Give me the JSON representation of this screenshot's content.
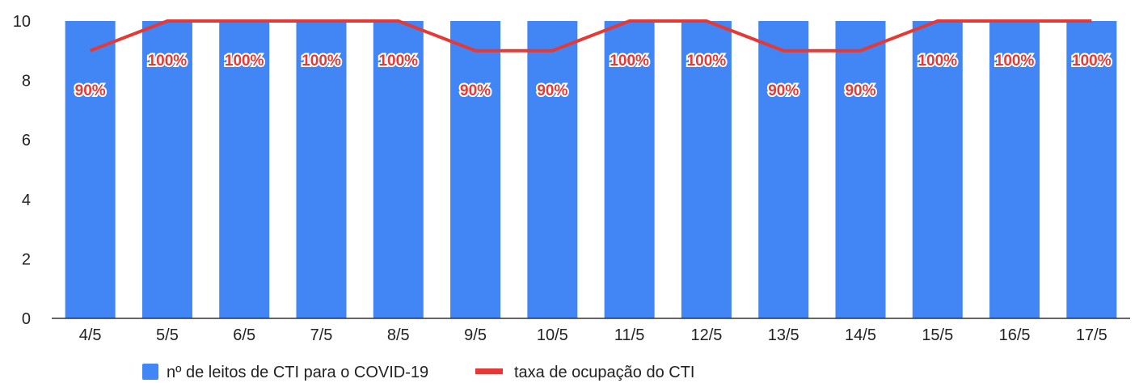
{
  "chart_data": {
    "type": "bar",
    "categories": [
      "4/5",
      "5/5",
      "6/5",
      "7/5",
      "8/5",
      "9/5",
      "10/5",
      "11/5",
      "12/5",
      "13/5",
      "14/5",
      "15/5",
      "16/5",
      "17/5"
    ],
    "series": [
      {
        "name": "nº de leitos de CTI para o COVID-19",
        "type": "bar",
        "color": "#4285f4",
        "values": [
          10,
          10,
          10,
          10,
          10,
          10,
          10,
          10,
          10,
          10,
          10,
          10,
          10,
          10
        ]
      },
      {
        "name": "taxa de ocupação do CTI",
        "type": "line",
        "color": "#e53935",
        "values": [
          9,
          10,
          10,
          10,
          10,
          9,
          9,
          10,
          10,
          9,
          9,
          10,
          10,
          10
        ],
        "labels": [
          "90%",
          "100%",
          "100%",
          "100%",
          "100%",
          "90%",
          "90%",
          "100%",
          "100%",
          "90%",
          "90%",
          "100%",
          "100%",
          "100%"
        ]
      }
    ],
    "ylim": [
      0,
      10
    ],
    "yticks": [
      0,
      2,
      4,
      6,
      8,
      10
    ],
    "grid": false,
    "legend": "bottom"
  }
}
